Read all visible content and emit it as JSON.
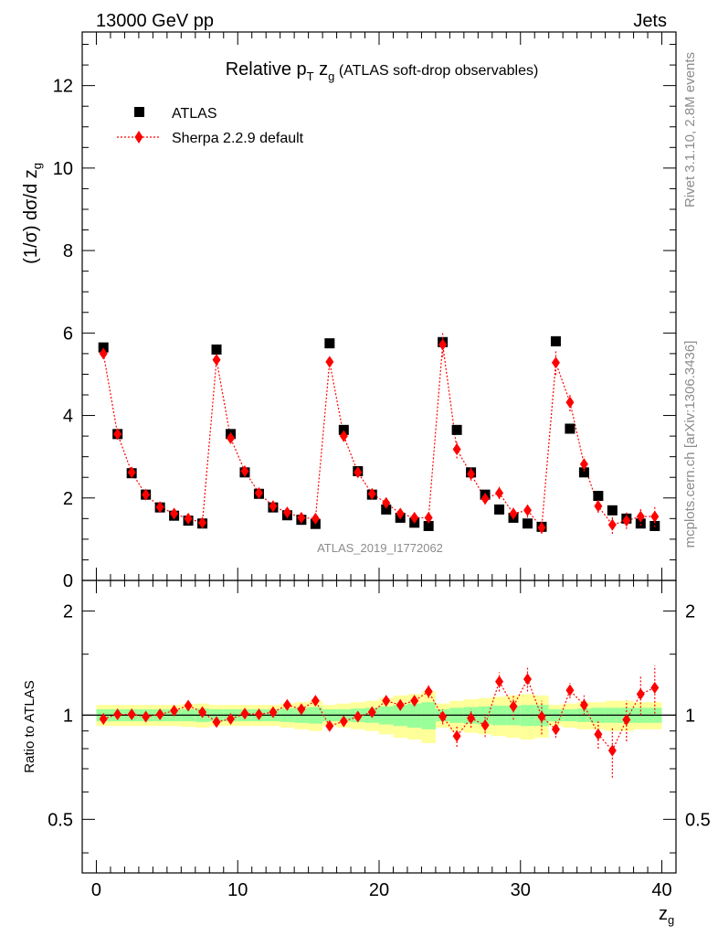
{
  "header": {
    "left": "13000 GeV pp",
    "right": "Jets"
  },
  "side": {
    "rivet": "Rivet 3.1.10,  2.8M events",
    "mcplots": "mcplots.cern.ch [arXiv:1306.3436]"
  },
  "chart_data": {
    "type": "scatter",
    "title": {
      "prefix": "Relative ",
      "p": "p",
      "p_sub": "T",
      "z": " z",
      "z_sub": "g",
      "suffix": " (ATLAS soft-drop observables)"
    },
    "watermark": "ATLAS_2019_I1772062",
    "ylabel": {
      "main": "(1/σ) dσ/d z",
      "sub": "g"
    },
    "xlabel": {
      "main": "z",
      "sub": "g"
    },
    "ratio_ylabel": "Ratio to ATLAS",
    "xlim": [
      -1,
      41
    ],
    "ylim": [
      0,
      13.3
    ],
    "ratio_ylim": [
      0.35,
      2.45
    ],
    "x_ticks": [
      "0",
      "10",
      "20",
      "30",
      "40"
    ],
    "y_ticks": [
      "0",
      "2",
      "4",
      "6",
      "8",
      "10",
      "12"
    ],
    "ratio_ticks": [
      "0.5",
      "1",
      "2"
    ],
    "legend": {
      "position": "top-left"
    },
    "x": [
      0.5,
      1.5,
      2.5,
      3.5,
      4.5,
      5.5,
      6.5,
      7.5,
      8.5,
      9.5,
      10.5,
      11.5,
      12.5,
      13.5,
      14.5,
      15.5,
      16.5,
      17.5,
      18.5,
      19.5,
      20.5,
      21.5,
      22.5,
      23.5,
      24.5,
      25.5,
      26.5,
      27.5,
      28.5,
      29.5,
      30.5,
      31.5,
      32.5,
      33.5,
      34.5,
      35.5,
      36.5,
      37.5,
      38.5,
      39.5
    ],
    "series": [
      {
        "name": "ATLAS",
        "color": "#000000",
        "marker": "square",
        "values": [
          5.65,
          3.55,
          2.6,
          2.08,
          1.77,
          1.57,
          1.45,
          1.38,
          5.6,
          3.55,
          2.62,
          2.1,
          1.77,
          1.58,
          1.47,
          1.37,
          5.75,
          3.65,
          2.65,
          2.08,
          1.72,
          1.52,
          1.4,
          1.32,
          5.78,
          3.65,
          2.62,
          2.08,
          1.72,
          1.52,
          1.38,
          1.3,
          5.8,
          3.68,
          2.62,
          2.05,
          1.7,
          1.5,
          1.38,
          1.32
        ],
        "band_inner": [
          0.04,
          0.04,
          0.04,
          0.04,
          0.04,
          0.04,
          0.04,
          0.045,
          0.04,
          0.04,
          0.04,
          0.04,
          0.04,
          0.045,
          0.05,
          0.055,
          0.04,
          0.04,
          0.045,
          0.05,
          0.06,
          0.07,
          0.08,
          0.09,
          0.04,
          0.05,
          0.055,
          0.06,
          0.065,
          0.065,
          0.07,
          0.07,
          0.04,
          0.04,
          0.045,
          0.05,
          0.05,
          0.05,
          0.05,
          0.05
        ],
        "band_outer": [
          0.07,
          0.07,
          0.07,
          0.07,
          0.07,
          0.07,
          0.075,
          0.08,
          0.07,
          0.07,
          0.07,
          0.07,
          0.07,
          0.08,
          0.09,
          0.1,
          0.07,
          0.08,
          0.09,
          0.1,
          0.12,
          0.14,
          0.15,
          0.17,
          0.08,
          0.1,
          0.11,
          0.12,
          0.13,
          0.14,
          0.15,
          0.14,
          0.07,
          0.08,
          0.09,
          0.09,
          0.1,
          0.1,
          0.09,
          0.09
        ]
      },
      {
        "name": "Sherpa 2.2.9 default",
        "color": "#ff0000",
        "marker": "diamond",
        "values": [
          5.5,
          3.55,
          2.62,
          2.08,
          1.78,
          1.62,
          1.5,
          1.4,
          5.35,
          3.45,
          2.65,
          2.12,
          1.8,
          1.65,
          1.52,
          1.5,
          5.3,
          3.5,
          2.62,
          2.1,
          1.88,
          1.62,
          1.52,
          1.52,
          5.72,
          3.18,
          2.58,
          1.98,
          2.12,
          1.62,
          1.7,
          1.28,
          5.28,
          4.32,
          2.82,
          1.8,
          1.35,
          1.45,
          1.55,
          1.55
        ],
        "errors": [
          0.05,
          0.06,
          0.05,
          0.05,
          0.05,
          0.06,
          0.07,
          0.08,
          0.1,
          0.08,
          0.07,
          0.07,
          0.07,
          0.08,
          0.08,
          0.08,
          0.12,
          0.1,
          0.08,
          0.08,
          0.1,
          0.1,
          0.1,
          0.12,
          0.3,
          0.22,
          0.16,
          0.14,
          0.15,
          0.14,
          0.18,
          0.15,
          0.3,
          0.22,
          0.18,
          0.16,
          0.22,
          0.2,
          0.22,
          0.26
        ]
      }
    ],
    "ratio": {
      "reference": "ATLAS",
      "values": [
        0.975,
        1.005,
        1.005,
        0.99,
        1.005,
        1.03,
        1.065,
        1.02,
        0.955,
        0.975,
        1.01,
        1.005,
        1.02,
        1.07,
        1.04,
        1.1,
        0.93,
        0.96,
        0.99,
        1.02,
        1.1,
        1.07,
        1.1,
        1.17,
        0.99,
        0.87,
        0.98,
        0.935,
        1.25,
        1.06,
        1.27,
        0.99,
        0.91,
        1.18,
        1.07,
        0.88,
        0.79,
        0.97,
        1.15,
        1.2
      ],
      "errors": [
        0.015,
        0.015,
        0.015,
        0.015,
        0.02,
        0.02,
        0.02,
        0.03,
        0.018,
        0.02,
        0.02,
        0.02,
        0.025,
        0.03,
        0.03,
        0.03,
        0.02,
        0.025,
        0.025,
        0.03,
        0.04,
        0.04,
        0.04,
        0.05,
        0.05,
        0.06,
        0.06,
        0.07,
        0.08,
        0.09,
        0.1,
        0.11,
        0.05,
        0.06,
        0.07,
        0.08,
        0.13,
        0.13,
        0.15,
        0.19
      ]
    }
  }
}
